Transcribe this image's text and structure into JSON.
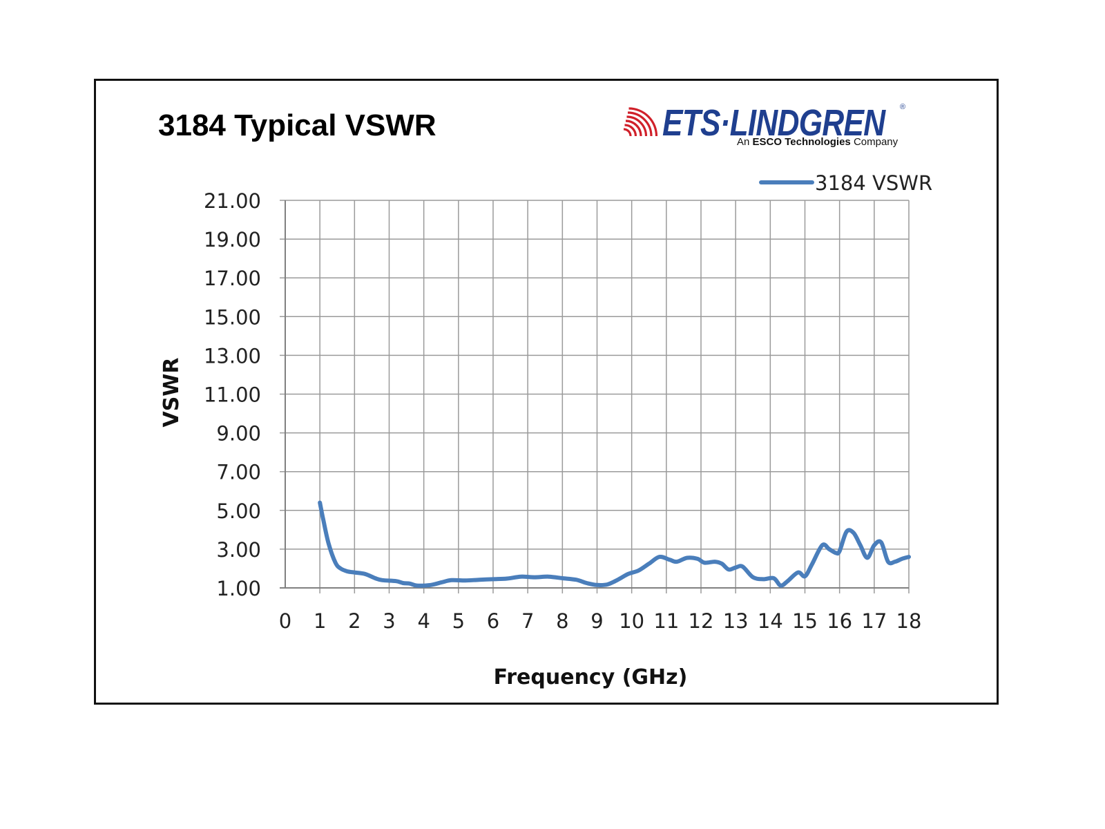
{
  "page": {
    "title": "3184 Typical VSWR"
  },
  "logo": {
    "name": "ETS·LINDGREN",
    "tagline_prefix": "An",
    "tagline_brand": "ESCO Technologies",
    "tagline_suffix": "Company",
    "registered_mark": "®",
    "brand_color": "#1f3f8f",
    "waves_color": "#d0202a"
  },
  "chart_data": {
    "type": "line",
    "xlabel": "Frequency (GHz)",
    "ylabel": "VSWR",
    "xlim": [
      0,
      18
    ],
    "ylim": [
      1,
      21
    ],
    "x_ticks": [
      "0",
      "1",
      "2",
      "3",
      "4",
      "5",
      "6",
      "7",
      "8",
      "9",
      "10",
      "11",
      "12",
      "13",
      "14",
      "15",
      "16",
      "17",
      "18"
    ],
    "y_ticks": [
      "21.00",
      "19.00",
      "17.00",
      "15.00",
      "13.00",
      "11.00",
      "9.00",
      "7.00",
      "5.00",
      "3.00",
      "1.00"
    ],
    "grid": true,
    "legend_position": "top-right",
    "series": [
      {
        "name": "3184 VSWR",
        "color": "#4a7ebb",
        "points": [
          [
            1.0,
            5.4
          ],
          [
            1.1,
            4.5
          ],
          [
            1.25,
            3.3
          ],
          [
            1.45,
            2.3
          ],
          [
            1.6,
            2.0
          ],
          [
            1.8,
            1.85
          ],
          [
            2.0,
            1.8
          ],
          [
            2.3,
            1.72
          ],
          [
            2.6,
            1.5
          ],
          [
            2.8,
            1.4
          ],
          [
            3.2,
            1.35
          ],
          [
            3.4,
            1.25
          ],
          [
            3.6,
            1.22
          ],
          [
            3.8,
            1.12
          ],
          [
            4.2,
            1.15
          ],
          [
            4.5,
            1.28
          ],
          [
            4.8,
            1.4
          ],
          [
            5.2,
            1.38
          ],
          [
            5.6,
            1.42
          ],
          [
            6.0,
            1.45
          ],
          [
            6.4,
            1.48
          ],
          [
            6.8,
            1.58
          ],
          [
            7.2,
            1.55
          ],
          [
            7.6,
            1.58
          ],
          [
            8.0,
            1.5
          ],
          [
            8.4,
            1.42
          ],
          [
            8.7,
            1.25
          ],
          [
            9.0,
            1.15
          ],
          [
            9.3,
            1.18
          ],
          [
            9.6,
            1.42
          ],
          [
            9.9,
            1.72
          ],
          [
            10.2,
            1.9
          ],
          [
            10.5,
            2.25
          ],
          [
            10.8,
            2.6
          ],
          [
            11.1,
            2.45
          ],
          [
            11.3,
            2.35
          ],
          [
            11.6,
            2.55
          ],
          [
            11.9,
            2.5
          ],
          [
            12.1,
            2.3
          ],
          [
            12.4,
            2.35
          ],
          [
            12.6,
            2.25
          ],
          [
            12.8,
            1.95
          ],
          [
            13.0,
            2.05
          ],
          [
            13.2,
            2.1
          ],
          [
            13.5,
            1.55
          ],
          [
            13.8,
            1.45
          ],
          [
            14.1,
            1.5
          ],
          [
            14.3,
            1.12
          ],
          [
            14.5,
            1.35
          ],
          [
            14.8,
            1.8
          ],
          [
            15.0,
            1.6
          ],
          [
            15.2,
            2.2
          ],
          [
            15.5,
            3.2
          ],
          [
            15.7,
            3.0
          ],
          [
            15.9,
            2.8
          ],
          [
            16.0,
            2.9
          ],
          [
            16.2,
            3.9
          ],
          [
            16.4,
            3.85
          ],
          [
            16.6,
            3.2
          ],
          [
            16.8,
            2.55
          ],
          [
            17.0,
            3.2
          ],
          [
            17.2,
            3.35
          ],
          [
            17.4,
            2.35
          ],
          [
            17.6,
            2.35
          ],
          [
            17.8,
            2.5
          ],
          [
            18.0,
            2.6
          ]
        ]
      }
    ]
  }
}
